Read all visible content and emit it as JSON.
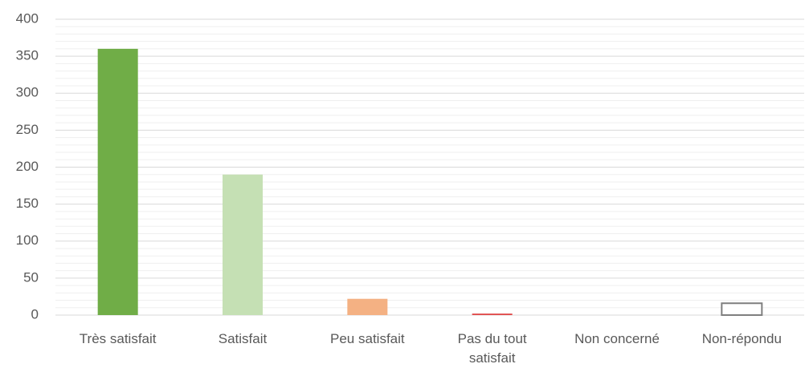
{
  "chart_data": {
    "type": "bar",
    "categories": [
      "Très satisfait",
      "Satisfait",
      "Peu satisfait",
      "Pas du tout satisfait",
      "Non concerné",
      "Non-répondu"
    ],
    "values": [
      360,
      190,
      22,
      2,
      0,
      16
    ],
    "colors": [
      "#70ad47",
      "#c5e0b4",
      "#f4b183",
      "#e04a4a",
      "#a5a5a5",
      "#ffffff"
    ],
    "edgecolors": [
      null,
      null,
      null,
      null,
      null,
      "#7f7f7f"
    ],
    "ylim": [
      0,
      400
    ],
    "yticks": [
      0,
      50,
      100,
      150,
      200,
      250,
      300,
      350,
      400
    ],
    "minor_yticks": [
      10,
      20,
      30,
      40,
      60,
      70,
      80,
      90,
      110,
      120,
      130,
      140,
      160,
      170,
      180,
      190,
      210,
      220,
      230,
      240,
      260,
      270,
      280,
      290,
      310,
      320,
      330,
      340,
      360,
      370,
      380,
      390
    ],
    "grid": true
  }
}
